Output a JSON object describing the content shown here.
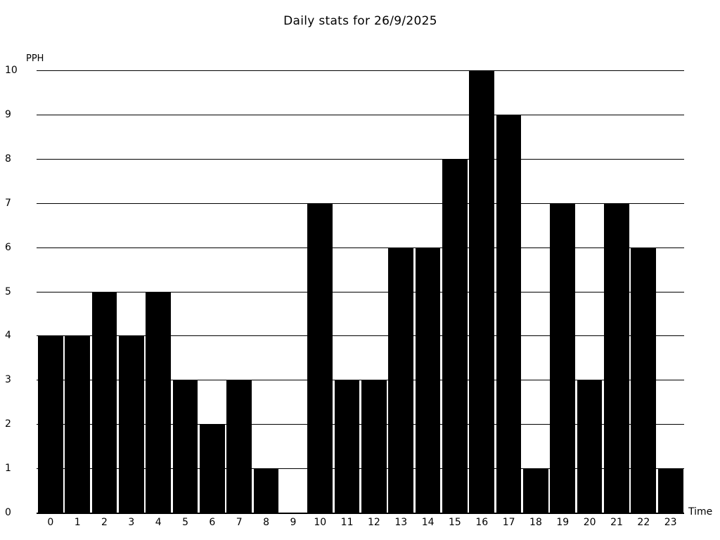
{
  "chart_data": {
    "type": "bar",
    "title": "Daily stats for 26/9/2025",
    "xlabel": "Time",
    "ylabel": "PPH",
    "categories": [
      "0",
      "1",
      "2",
      "3",
      "4",
      "5",
      "6",
      "7",
      "8",
      "9",
      "10",
      "11",
      "12",
      "13",
      "14",
      "15",
      "16",
      "17",
      "18",
      "19",
      "20",
      "21",
      "22",
      "23"
    ],
    "values": [
      4,
      4,
      5,
      4,
      5,
      3,
      2,
      3,
      1,
      0,
      7,
      3,
      3,
      6,
      6,
      8,
      10,
      9,
      1,
      7,
      3,
      7,
      6,
      1
    ],
    "ylim": [
      0,
      10
    ],
    "yticks": [
      0,
      1,
      2,
      3,
      4,
      5,
      6,
      7,
      8,
      9,
      10
    ],
    "grid": true,
    "legend_position": "none",
    "bar_color": "#000000",
    "grid_color": "#000000",
    "axis_color": "#000000",
    "background_color": "#ffffff",
    "text_color": "#000000"
  }
}
